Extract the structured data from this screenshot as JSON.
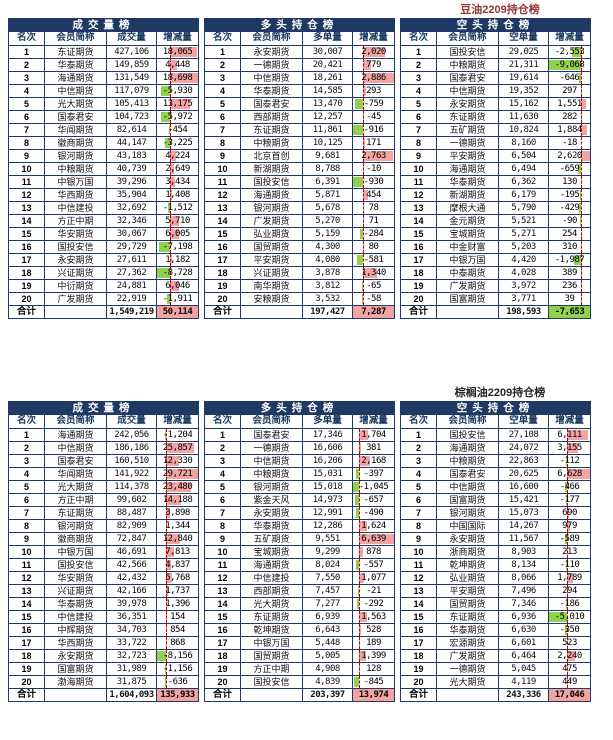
{
  "colors": {
    "header_bg": "#1F3864",
    "border": "#1F3864",
    "positive_bar": "#F4A3A3",
    "negative_bar": "#92D050",
    "axis_line": "#C00000",
    "title_top": "#943634",
    "title_bottom": "#262626"
  },
  "tables": [
    {
      "title": "豆油2209持仓榜",
      "title_color": "#943634",
      "sections": [
        {
          "header": "成交量榜",
          "columns": [
            "名次",
            "会员简称",
            "成交量",
            "增减量"
          ],
          "rows": [
            {
              "rank": 1,
              "name": "东证期货",
              "value": "427,106",
              "change": 18065
            },
            {
              "rank": 2,
              "name": "华泰期货",
              "value": "149,859",
              "change": 4448
            },
            {
              "rank": 3,
              "name": "海通期货",
              "value": "131,549",
              "change": 18698
            },
            {
              "rank": 4,
              "name": "中信期货",
              "value": "117,079",
              "change": -5930
            },
            {
              "rank": 5,
              "name": "光大期货",
              "value": "105,413",
              "change": 13175
            },
            {
              "rank": 6,
              "name": "国泰君安",
              "value": "104,723",
              "change": -5972
            },
            {
              "rank": 7,
              "name": "华闻期货",
              "value": "82,614",
              "change": -454
            },
            {
              "rank": 8,
              "name": "徽商期货",
              "value": "44,147",
              "change": -3225
            },
            {
              "rank": 9,
              "name": "银河期货",
              "value": "43,183",
              "change": 4224
            },
            {
              "rank": 10,
              "name": "中粮期货",
              "value": "40,739",
              "change": 2649
            },
            {
              "rank": 11,
              "name": "中银万国",
              "value": "39,296",
              "change": 3434
            },
            {
              "rank": 12,
              "name": "华西期货",
              "value": "35,904",
              "change": 1408
            },
            {
              "rank": 13,
              "name": "中信建投",
              "value": "32,692",
              "change": -1512
            },
            {
              "rank": 14,
              "name": "方正中期",
              "value": "32,346",
              "change": 5710
            },
            {
              "rank": 15,
              "name": "华安期货",
              "value": "30,067",
              "change": 6005
            },
            {
              "rank": 16,
              "name": "国投安信",
              "value": "29,729",
              "change": -7198
            },
            {
              "rank": 17,
              "name": "永安期货",
              "value": "27,611",
              "change": 1182
            },
            {
              "rank": 18,
              "name": "兴证期货",
              "value": "27,362",
              "change": -8728
            },
            {
              "rank": 19,
              "name": "中衍期货",
              "value": "24,881",
              "change": 6046
            },
            {
              "rank": 20,
              "name": "广发期货",
              "value": "22,919",
              "change": -1911
            }
          ],
          "total_label": "合计",
          "total_value": "1,549,219",
          "total_change": 50114
        },
        {
          "header": "多头持仓榜",
          "columns": [
            "名次",
            "会员简称",
            "多单量",
            "增减量"
          ],
          "rows": [
            {
              "rank": 1,
              "name": "永安期货",
              "value": "30,007",
              "change": 2020
            },
            {
              "rank": 2,
              "name": "一德期货",
              "value": "20,421",
              "change": 779
            },
            {
              "rank": 3,
              "name": "中信期货",
              "value": "18,261",
              "change": 2886
            },
            {
              "rank": 4,
              "name": "华泰期货",
              "value": "14,585",
              "change": 293
            },
            {
              "rank": 5,
              "name": "国泰君安",
              "value": "13,470",
              "change": -759
            },
            {
              "rank": 6,
              "name": "西部期货",
              "value": "12,257",
              "change": -45
            },
            {
              "rank": 7,
              "name": "东证期货",
              "value": "11,861",
              "change": -916
            },
            {
              "rank": 8,
              "name": "中粮期货",
              "value": "10,125",
              "change": 171
            },
            {
              "rank": 9,
              "name": "北京首创",
              "value": "9,681",
              "change": 2763
            },
            {
              "rank": 10,
              "name": "新湖期货",
              "value": "8,788",
              "change": -10
            },
            {
              "rank": 11,
              "name": "国投安信",
              "value": "6,391",
              "change": -930
            },
            {
              "rank": 12,
              "name": "海通期货",
              "value": "5,871",
              "change": 454
            },
            {
              "rank": 13,
              "name": "银河期货",
              "value": "5,678",
              "change": 78
            },
            {
              "rank": 14,
              "name": "广发期货",
              "value": "5,270",
              "change": 71
            },
            {
              "rank": 15,
              "name": "弘业期货",
              "value": "5,159",
              "change": -284
            },
            {
              "rank": 16,
              "name": "国贸期货",
              "value": "4,300",
              "change": 80
            },
            {
              "rank": 17,
              "name": "平安期货",
              "value": "4,080",
              "change": -581
            },
            {
              "rank": 18,
              "name": "兴证期货",
              "value": "3,878",
              "change": 1340
            },
            {
              "rank": 19,
              "name": "南华期货",
              "value": "3,812",
              "change": -65
            },
            {
              "rank": 20,
              "name": "安粮期货",
              "value": "3,532",
              "change": -58
            }
          ],
          "total_label": "合计",
          "total_value": "197,427",
          "total_change": 7287
        },
        {
          "header": "空头持仓榜",
          "columns": [
            "名次",
            "会员简称",
            "空单量",
            "增减量"
          ],
          "rows": [
            {
              "rank": 1,
              "name": "国投安信",
              "value": "29,025",
              "change": -2553
            },
            {
              "rank": 2,
              "name": "中粮期货",
              "value": "21,311",
              "change": -9068
            },
            {
              "rank": 3,
              "name": "国泰君安",
              "value": "19,614",
              "change": -646
            },
            {
              "rank": 4,
              "name": "中信期货",
              "value": "19,352",
              "change": 297
            },
            {
              "rank": 5,
              "name": "永安期货",
              "value": "15,162",
              "change": 1551
            },
            {
              "rank": 6,
              "name": "东证期货",
              "value": "11,630",
              "change": 282
            },
            {
              "rank": 7,
              "name": "五矿期货",
              "value": "10,824",
              "change": 1884
            },
            {
              "rank": 8,
              "name": "一德期货",
              "value": "8,160",
              "change": -18
            },
            {
              "rank": 9,
              "name": "平安期货",
              "value": "6,504",
              "change": 2620
            },
            {
              "rank": 10,
              "name": "海通期货",
              "value": "6,494",
              "change": -659
            },
            {
              "rank": 11,
              "name": "华泰期货",
              "value": "6,362",
              "change": 130
            },
            {
              "rank": 12,
              "name": "新湖期货",
              "value": "6,179",
              "change": -195
            },
            {
              "rank": 13,
              "name": "摩根大通",
              "value": "5,790",
              "change": -429
            },
            {
              "rank": 14,
              "name": "金元期货",
              "value": "5,521",
              "change": -90
            },
            {
              "rank": 15,
              "name": "宝城期货",
              "value": "5,271",
              "change": 254
            },
            {
              "rank": 16,
              "name": "中金财富",
              "value": "5,203",
              "change": 310
            },
            {
              "rank": 17,
              "name": "中银万国",
              "value": "4,420",
              "change": -1987
            },
            {
              "rank": 18,
              "name": "中泰期货",
              "value": "4,028",
              "change": 389
            },
            {
              "rank": 19,
              "name": "广发期货",
              "value": "3,972",
              "change": 236
            },
            {
              "rank": 20,
              "name": "国富期货",
              "value": "3,771",
              "change": 39
            }
          ],
          "total_label": "合计",
          "total_value": "198,593",
          "total_change": -7653
        }
      ]
    },
    {
      "title": "棕榈油2209持仓榜",
      "title_color": "#262626",
      "sections": [
        {
          "header": "成交量榜",
          "columns": [
            "名次",
            "会员简称",
            "成交量",
            "增减量"
          ],
          "rows": [
            {
              "rank": 1,
              "name": "海通期货",
              "value": "242,056",
              "change": -1204
            },
            {
              "rank": 2,
              "name": "中信期货",
              "value": "186,186",
              "change": 25857
            },
            {
              "rank": 3,
              "name": "国泰君安",
              "value": "160,510",
              "change": 12330
            },
            {
              "rank": 4,
              "name": "华闻期货",
              "value": "141,922",
              "change": 29721
            },
            {
              "rank": 5,
              "name": "光大期货",
              "value": "114,378",
              "change": 23480
            },
            {
              "rank": 6,
              "name": "方正中期",
              "value": "99,602",
              "change": 14188
            },
            {
              "rank": 7,
              "name": "东证期货",
              "value": "88,487",
              "change": 3898
            },
            {
              "rank": 8,
              "name": "银河期货",
              "value": "82,909",
              "change": 1344
            },
            {
              "rank": 9,
              "name": "徽商期货",
              "value": "72,847",
              "change": 12840
            },
            {
              "rank": 10,
              "name": "中银万国",
              "value": "46,691",
              "change": 7813
            },
            {
              "rank": 11,
              "name": "国投安信",
              "value": "42,566",
              "change": 4837
            },
            {
              "rank": 12,
              "name": "华安期货",
              "value": "42,432",
              "change": 5768
            },
            {
              "rank": 13,
              "name": "兴证期货",
              "value": "42,166",
              "change": 1737
            },
            {
              "rank": 14,
              "name": "华泰期货",
              "value": "39,978",
              "change": 1396
            },
            {
              "rank": 15,
              "name": "中信建投",
              "value": "36,351",
              "change": 154
            },
            {
              "rank": 16,
              "name": "中辉期货",
              "value": "34,703",
              "change": 854
            },
            {
              "rank": 17,
              "name": "华西期货",
              "value": "33,722",
              "change": 868
            },
            {
              "rank": 18,
              "name": "永安期货",
              "value": "32,723",
              "change": -8156
            },
            {
              "rank": 19,
              "name": "国富期货",
              "value": "31,989",
              "change": -1156
            },
            {
              "rank": 20,
              "name": "渤海期货",
              "value": "31,875",
              "change": -636
            }
          ],
          "total_label": "合计",
          "total_value": "1,604,093",
          "total_change": 135933
        },
        {
          "header": "多头持仓榜",
          "columns": [
            "名次",
            "会员简称",
            "多单量",
            "增减量"
          ],
          "rows": [
            {
              "rank": 1,
              "name": "国泰君安",
              "value": "17,346",
              "change": 1704
            },
            {
              "rank": 2,
              "name": "一德期货",
              "value": "16,606",
              "change": 381
            },
            {
              "rank": 3,
              "name": "中信期货",
              "value": "16,206",
              "change": 2168
            },
            {
              "rank": 4,
              "name": "中粮期货",
              "value": "15,031",
              "change": -397
            },
            {
              "rank": 5,
              "name": "银河期货",
              "value": "15,018",
              "change": -1045
            },
            {
              "rank": 6,
              "name": "紫金天风",
              "value": "14,973",
              "change": -657
            },
            {
              "rank": 7,
              "name": "永安期货",
              "value": "12,991",
              "change": -490
            },
            {
              "rank": 8,
              "name": "华泰期货",
              "value": "12,286",
              "change": 1624
            },
            {
              "rank": 9,
              "name": "五矿期货",
              "value": "9,551",
              "change": 6639
            },
            {
              "rank": 10,
              "name": "宝城期货",
              "value": "9,299",
              "change": 878
            },
            {
              "rank": 11,
              "name": "海通期货",
              "value": "8,024",
              "change": -557
            },
            {
              "rank": 12,
              "name": "中信建投",
              "value": "7,550",
              "change": 1077
            },
            {
              "rank": 13,
              "name": "西部期货",
              "value": "7,457",
              "change": -21
            },
            {
              "rank": 14,
              "name": "光大期货",
              "value": "7,277",
              "change": -292
            },
            {
              "rank": 15,
              "name": "东证期货",
              "value": "6,939",
              "change": 1563
            },
            {
              "rank": 16,
              "name": "乾坤期货",
              "value": "6,643",
              "change": 528
            },
            {
              "rank": 17,
              "name": "中银万国",
              "value": "5,448",
              "change": 189
            },
            {
              "rank": 18,
              "name": "国贸期货",
              "value": "5,005",
              "change": 1399
            },
            {
              "rank": 19,
              "name": "方正中期",
              "value": "4,908",
              "change": 128
            },
            {
              "rank": 20,
              "name": "国投安信",
              "value": "4,839",
              "change": -845
            }
          ],
          "total_label": "合计",
          "total_value": "203,397",
          "total_change": 13974
        },
        {
          "header": "空头持仓榜",
          "columns": [
            "名次",
            "会员简称",
            "空单量",
            "增减量"
          ],
          "rows": [
            {
              "rank": 1,
              "name": "国投安信",
              "value": "27,108",
              "change": 6111
            },
            {
              "rank": 2,
              "name": "海通期货",
              "value": "24,072",
              "change": 3155
            },
            {
              "rank": 3,
              "name": "中粮期货",
              "value": "22,863",
              "change": -112
            },
            {
              "rank": 4,
              "name": "国泰君安",
              "value": "20,625",
              "change": 6628
            },
            {
              "rank": 5,
              "name": "中信期货",
              "value": "16,600",
              "change": -466
            },
            {
              "rank": 6,
              "name": "国富期货",
              "value": "15,421",
              "change": -177
            },
            {
              "rank": 7,
              "name": "银河期货",
              "value": "15,073",
              "change": 690
            },
            {
              "rank": 8,
              "name": "中国国际",
              "value": "14,267",
              "change": 979
            },
            {
              "rank": 9,
              "name": "永安期货",
              "value": "11,567",
              "change": -589
            },
            {
              "rank": 10,
              "name": "浙商期货",
              "value": "8,903",
              "change": 213
            },
            {
              "rank": 11,
              "name": "乾坤期货",
              "value": "8,134",
              "change": -110
            },
            {
              "rank": 12,
              "name": "弘业期货",
              "value": "8,066",
              "change": 1789
            },
            {
              "rank": 13,
              "name": "平安期货",
              "value": "7,496",
              "change": 294
            },
            {
              "rank": 14,
              "name": "国贸期货",
              "value": "7,346",
              "change": -186
            },
            {
              "rank": 15,
              "name": "东证期货",
              "value": "6,936",
              "change": -5010
            },
            {
              "rank": 16,
              "name": "华泰期货",
              "value": "6,630",
              "change": -350
            },
            {
              "rank": 17,
              "name": "宏源期货",
              "value": "6,601",
              "change": 523
            },
            {
              "rank": 18,
              "name": "广发期货",
              "value": "6,464",
              "change": 2240
            },
            {
              "rank": 19,
              "name": "一德期货",
              "value": "5,045",
              "change": 475
            },
            {
              "rank": 20,
              "name": "光大期货",
              "value": "4,119",
              "change": 449
            }
          ],
          "total_label": "合计",
          "total_value": "243,336",
          "total_change": 17046
        }
      ]
    }
  ]
}
